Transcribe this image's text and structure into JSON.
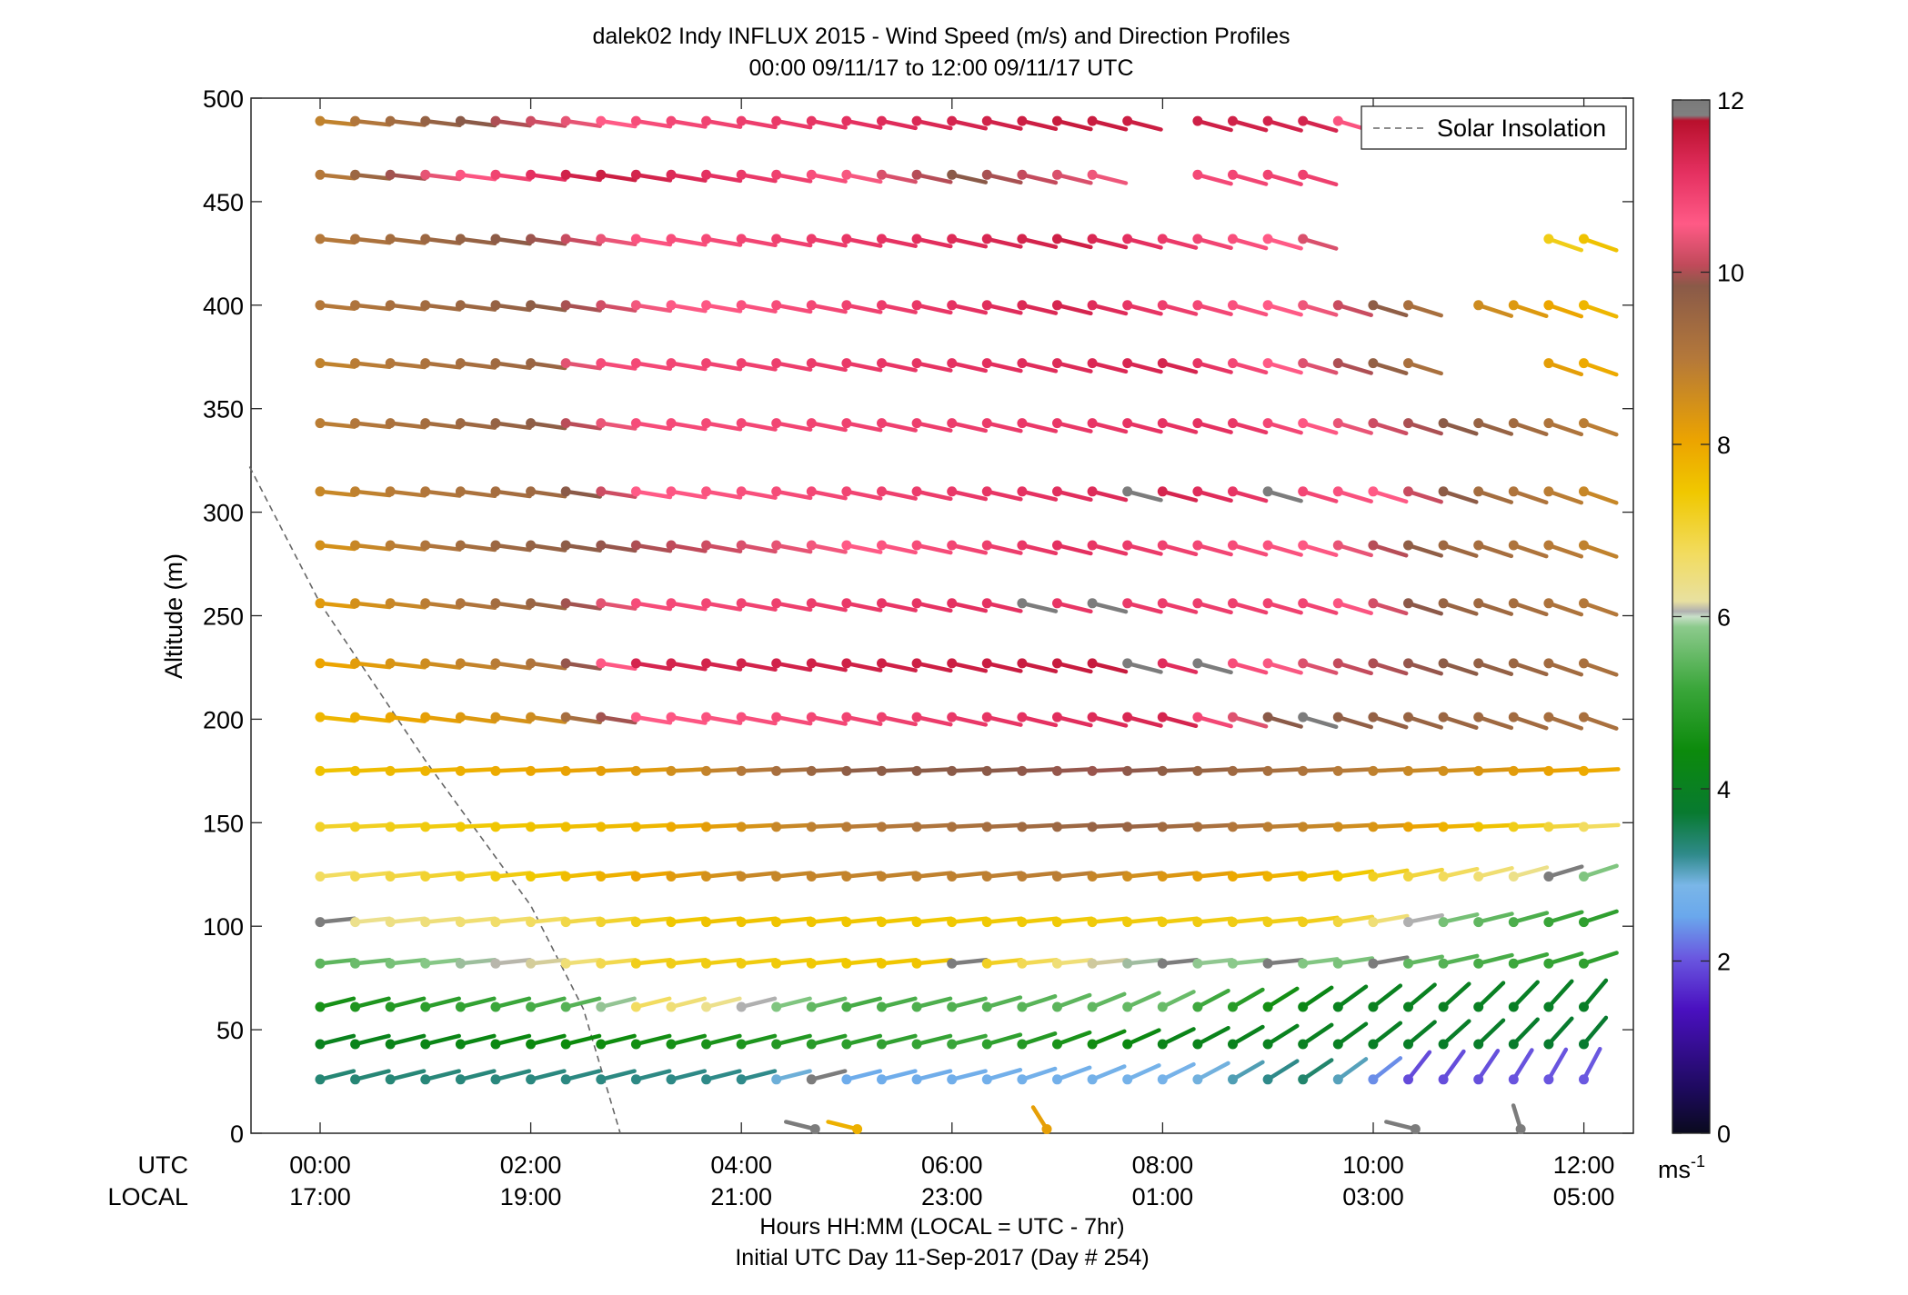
{
  "chart_data": {
    "type": "scatter",
    "title": "dalek02 Indy INFLUX 2015 - Wind Speed (m/s) and Direction Profiles",
    "subtitle": "00:00 09/11/17 to 12:00 09/11/17  UTC",
    "ylabel": "Altitude (m)",
    "xlabel_row_utc": "UTC",
    "xlabel_row_local": "LOCAL",
    "xlabel": "Hours HH:MM  (LOCAL = UTC - 7hr)",
    "xlabel2": "Initial UTC Day 11-Sep-2017 (Day # 254)",
    "ylim": [
      0,
      500
    ],
    "xlim_hours": [
      -0.67,
      12.67
    ],
    "yticks": [
      0,
      50,
      100,
      150,
      200,
      250,
      300,
      350,
      400,
      450,
      500
    ],
    "xticks_utc": [
      "00:00",
      "02:00",
      "04:00",
      "06:00",
      "08:00",
      "10:00",
      "12:00"
    ],
    "xticks_local": [
      "17:00",
      "19:00",
      "21:00",
      "23:00",
      "01:00",
      "03:00",
      "05:00"
    ],
    "legend": {
      "label": "Solar Insolation",
      "position": "top-right",
      "style": "dashed",
      "color": "#666666"
    },
    "colorbar": {
      "label": "ms",
      "label_exponent": "-1",
      "range": [
        0,
        12
      ],
      "ticks": [
        0,
        2,
        4,
        6,
        8,
        10,
        12
      ]
    },
    "solar_insolation_line": [
      {
        "x": -0.67,
        "y": 322
      },
      {
        "x": 0.0,
        "y": 256
      },
      {
        "x": 1.0,
        "y": 180
      },
      {
        "x": 2.0,
        "y": 110
      },
      {
        "x": 2.5,
        "y": 60
      },
      {
        "x": 2.85,
        "y": 0
      }
    ],
    "levels_m": [
      26,
      43,
      61,
      82,
      102,
      124,
      148,
      175,
      201,
      227,
      256,
      284,
      310,
      343,
      372,
      400,
      432,
      463,
      489
    ],
    "time_step_hours": 0.3333,
    "speed_profile": [
      {
        "alt": 26,
        "knots": [
          [
            0,
            3.3
          ],
          [
            4,
            3.2
          ],
          [
            4.8,
            2.6
          ],
          [
            8.0,
            2.8
          ],
          [
            9.5,
            3.4
          ],
          [
            10.2,
            1.9
          ],
          [
            12.0,
            2.0
          ]
        ]
      },
      {
        "alt": 43,
        "knots": [
          [
            0,
            4.0
          ],
          [
            3.5,
            4.6
          ],
          [
            6.0,
            5.2
          ],
          [
            8.0,
            4.1
          ],
          [
            12.0,
            3.6
          ]
        ]
      },
      {
        "alt": 61,
        "knots": [
          [
            0,
            4.6
          ],
          [
            2.5,
            5.5
          ],
          [
            3.0,
            6.8
          ],
          [
            5.0,
            5.3
          ],
          [
            8.0,
            5.6
          ],
          [
            9.5,
            4.0
          ],
          [
            12.0,
            3.8
          ]
        ]
      },
      {
        "alt": 82,
        "knots": [
          [
            0,
            5.5
          ],
          [
            2.0,
            6.2
          ],
          [
            3.0,
            7.3
          ],
          [
            6.0,
            7.6
          ],
          [
            7.5,
            6.0
          ],
          [
            9.5,
            5.8
          ],
          [
            12.0,
            5.0
          ]
        ]
      },
      {
        "alt": 102,
        "knots": [
          [
            0,
            6.2
          ],
          [
            2.0,
            6.8
          ],
          [
            3.5,
            7.6
          ],
          [
            8.0,
            7.4
          ],
          [
            9.5,
            7.3
          ],
          [
            10.5,
            5.8
          ],
          [
            12.0,
            5.0
          ]
        ]
      },
      {
        "alt": 124,
        "knots": [
          [
            0,
            6.8
          ],
          [
            2.0,
            7.5
          ],
          [
            4.0,
            8.7
          ],
          [
            7.0,
            8.9
          ],
          [
            9.5,
            7.6
          ],
          [
            11.0,
            6.6
          ],
          [
            12.0,
            5.8
          ]
        ]
      },
      {
        "alt": 148,
        "knots": [
          [
            0,
            7.2
          ],
          [
            3.0,
            7.8
          ],
          [
            4.5,
            8.8
          ],
          [
            7.5,
            9.6
          ],
          [
            10.0,
            8.4
          ],
          [
            12.0,
            6.8
          ]
        ]
      },
      {
        "alt": 175,
        "knots": [
          [
            0,
            7.6
          ],
          [
            3.0,
            8.3
          ],
          [
            5.0,
            9.7
          ],
          [
            7.5,
            9.9
          ],
          [
            10.5,
            8.6
          ],
          [
            12.0,
            8.0
          ]
        ]
      },
      {
        "alt": 201,
        "knots": [
          [
            0,
            7.8
          ],
          [
            2.0,
            8.6
          ],
          [
            3.0,
            10.6
          ],
          [
            8.0,
            11.4
          ],
          [
            9.0,
            9.8
          ],
          [
            12.0,
            9.2
          ]
        ]
      },
      {
        "alt": 227,
        "knots": [
          [
            0,
            8.1
          ],
          [
            2.0,
            9.1
          ],
          [
            3.0,
            11.4
          ],
          [
            7.5,
            11.6
          ],
          [
            9.5,
            10.2
          ],
          [
            12.0,
            9.2
          ]
        ]
      },
      {
        "alt": 256,
        "knots": [
          [
            0,
            8.3
          ],
          [
            2.0,
            9.5
          ],
          [
            3.0,
            10.8
          ],
          [
            6.0,
            11.2
          ],
          [
            9.5,
            10.9
          ],
          [
            10.5,
            9.6
          ],
          [
            12.0,
            9.0
          ]
        ]
      },
      {
        "alt": 284,
        "knots": [
          [
            0,
            8.5
          ],
          [
            1.5,
            9.4
          ],
          [
            3.0,
            10.0
          ],
          [
            7.0,
            11.2
          ],
          [
            9.5,
            10.6
          ],
          [
            10.5,
            9.5
          ],
          [
            12.0,
            8.8
          ]
        ]
      },
      {
        "alt": 310,
        "knots": [
          [
            0,
            8.7
          ],
          [
            2.0,
            9.4
          ],
          [
            3.0,
            10.6
          ],
          [
            8.0,
            11.4
          ],
          [
            10.0,
            10.6
          ],
          [
            11.0,
            9.3
          ],
          [
            12.0,
            8.7
          ]
        ]
      },
      {
        "alt": 343,
        "knots": [
          [
            0,
            8.9
          ],
          [
            2.0,
            9.7
          ],
          [
            3.0,
            10.8
          ],
          [
            8.5,
            11.2
          ],
          [
            10.0,
            10.2
          ],
          [
            12.0,
            8.9
          ]
        ]
      },
      {
        "alt": 372,
        "knots": [
          [
            0,
            8.8
          ],
          [
            2.0,
            9.5
          ],
          [
            2.5,
            10.8
          ],
          [
            8.0,
            11.4
          ],
          [
            9.5,
            10.2
          ],
          [
            10.5,
            9.0
          ],
          [
            12.0,
            8.0
          ]
        ]
      },
      {
        "alt": 400,
        "knots": [
          [
            0,
            9.0
          ],
          [
            2.0,
            9.7
          ],
          [
            3.0,
            10.5
          ],
          [
            7.0,
            11.4
          ],
          [
            9.5,
            10.4
          ],
          [
            10.5,
            9.0
          ],
          [
            12.0,
            7.8
          ]
        ]
      },
      {
        "alt": 432,
        "knots": [
          [
            0,
            9.0
          ],
          [
            2.0,
            9.9
          ],
          [
            3.0,
            10.7
          ],
          [
            7.0,
            11.5
          ],
          [
            9.0,
            10.6
          ],
          [
            10.0,
            9.7
          ],
          [
            11.0,
            6.8
          ],
          [
            12.0,
            7.6
          ]
        ]
      },
      {
        "alt": 463,
        "knots": [
          [
            0,
            9.0
          ],
          [
            1.0,
            10.4
          ],
          [
            2.5,
            11.6
          ],
          [
            4.5,
            10.9
          ],
          [
            6.0,
            9.8
          ],
          [
            8.0,
            10.8
          ],
          [
            9.5,
            11.0
          ]
        ]
      },
      {
        "alt": 489,
        "knots": [
          [
            0,
            8.8
          ],
          [
            1.0,
            9.6
          ],
          [
            3.0,
            10.8
          ],
          [
            7.0,
            11.6
          ],
          [
            9.5,
            11.4
          ],
          [
            10.0,
            9.3
          ]
        ]
      }
    ],
    "gaps": [
      {
        "alt": 26,
        "from": 12.2,
        "to": 12.7
      },
      {
        "alt": 372,
        "from": 3.0,
        "to": 3.3
      },
      {
        "alt": 372,
        "from": 10.4,
        "to": 11.4
      },
      {
        "alt": 400,
        "from": 10.6,
        "to": 10.95
      },
      {
        "alt": 432,
        "from": 9.4,
        "to": 10.5
      },
      {
        "alt": 432,
        "from": 10.5,
        "to": 10.95
      },
      {
        "alt": 432,
        "from": 10.95,
        "to": 11.65
      },
      {
        "alt": 463,
        "from": 1.1,
        "to": 1.3
      },
      {
        "alt": 463,
        "from": 7.5,
        "to": 8.0
      },
      {
        "alt": 463,
        "from": 9.6,
        "to": 12.7
      },
      {
        "alt": 489,
        "from": 7.7,
        "to": 8.0
      },
      {
        "alt": 489,
        "from": 10.0,
        "to": 12.7
      }
    ],
    "surface_barbs": [
      {
        "x": 4.7,
        "y": 2,
        "speed": 6.1
      },
      {
        "x": 5.1,
        "y": 2,
        "speed": 7.9
      },
      {
        "x": 6.9,
        "y": 2,
        "speed": 8.2
      },
      {
        "x": 10.4,
        "y": 2,
        "speed": 6.1
      },
      {
        "x": 11.4,
        "y": 2,
        "speed": 6.1
      }
    ],
    "grey_markers": [
      {
        "alt": 26,
        "x": 4.7
      },
      {
        "alt": 82,
        "x": 6.0
      },
      {
        "alt": 82,
        "x": 8.0
      },
      {
        "alt": 82,
        "x": 9.0
      },
      {
        "alt": 82,
        "x": 10.0
      },
      {
        "alt": 102,
        "x": 0.0
      },
      {
        "alt": 124,
        "x": 11.7
      },
      {
        "alt": 227,
        "x": 7.5
      },
      {
        "alt": 227,
        "x": 7.8
      },
      {
        "alt": 227,
        "x": 8.2
      },
      {
        "alt": 227,
        "x": 8.5
      },
      {
        "alt": 227,
        "x": 9.5
      },
      {
        "alt": 256,
        "x": 6.7
      },
      {
        "alt": 256,
        "x": 7.3
      },
      {
        "alt": 256,
        "x": 8.5
      },
      {
        "alt": 310,
        "x": 7.5
      },
      {
        "alt": 310,
        "x": 7.8
      },
      {
        "alt": 310,
        "x": 9.0
      },
      {
        "alt": 201,
        "x": 9.2
      },
      {
        "alt": 201,
        "x": 7.5
      }
    ]
  }
}
